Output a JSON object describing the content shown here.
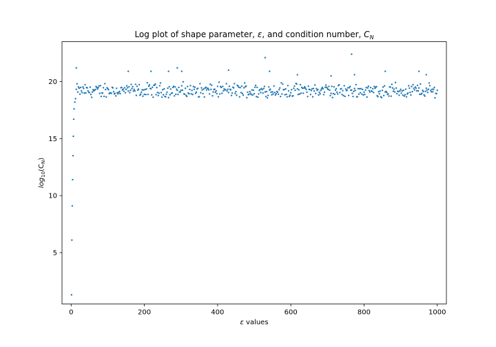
{
  "chart_data": {
    "type": "scatter",
    "title_parts": {
      "prefix": "Log plot of shape parameter, ",
      "epsilon": "ε",
      "middle": ", and condition number, ",
      "c": "C",
      "c_sub": "N"
    },
    "xlabel_parts": {
      "epsilon": "ε",
      "rest": " values"
    },
    "ylabel_parts": {
      "log": "log",
      "sub": "10",
      "open": "(C",
      "c_sub": "N",
      "close": ")"
    },
    "xlim": [
      -25,
      1025
    ],
    "ylim": [
      0.5,
      23.5
    ],
    "x_ticks": [
      0,
      200,
      400,
      600,
      800,
      1000
    ],
    "x_tick_labels": [
      "0",
      "200",
      "400",
      "600",
      "800",
      "1000"
    ],
    "y_ticks": [
      5,
      10,
      15,
      20
    ],
    "y_tick_labels": [
      "5",
      "10",
      "15",
      "20"
    ],
    "grid": false,
    "marker_color": "#1f77b4",
    "series": [
      {
        "start_points": [
          {
            "x": 1,
            "y": 1.3
          },
          {
            "x": 2,
            "y": 6.1
          },
          {
            "x": 3,
            "y": 9.1
          },
          {
            "x": 4,
            "y": 11.4
          },
          {
            "x": 5,
            "y": 13.5
          },
          {
            "x": 6,
            "y": 15.2
          },
          {
            "x": 7,
            "y": 16.7
          },
          {
            "x": 8,
            "y": 17.6
          },
          {
            "x": 10,
            "y": 18.2
          },
          {
            "x": 12,
            "y": 18.5
          }
        ],
        "plateau": {
          "x_start": 14,
          "x_end": 1000,
          "step": 2,
          "y_min": 18.3,
          "y_max": 20.1
        },
        "outliers": [
          {
            "x": 14,
            "y": 21.2
          },
          {
            "x": 156,
            "y": 20.9
          },
          {
            "x": 218,
            "y": 20.9
          },
          {
            "x": 266,
            "y": 20.9
          },
          {
            "x": 290,
            "y": 21.2
          },
          {
            "x": 302,
            "y": 20.9
          },
          {
            "x": 430,
            "y": 21.0
          },
          {
            "x": 530,
            "y": 22.1
          },
          {
            "x": 542,
            "y": 20.9
          },
          {
            "x": 618,
            "y": 20.6
          },
          {
            "x": 710,
            "y": 20.5
          },
          {
            "x": 766,
            "y": 22.4
          },
          {
            "x": 774,
            "y": 20.6
          },
          {
            "x": 858,
            "y": 20.9
          },
          {
            "x": 950,
            "y": 20.9
          },
          {
            "x": 970,
            "y": 20.6
          }
        ]
      }
    ]
  }
}
